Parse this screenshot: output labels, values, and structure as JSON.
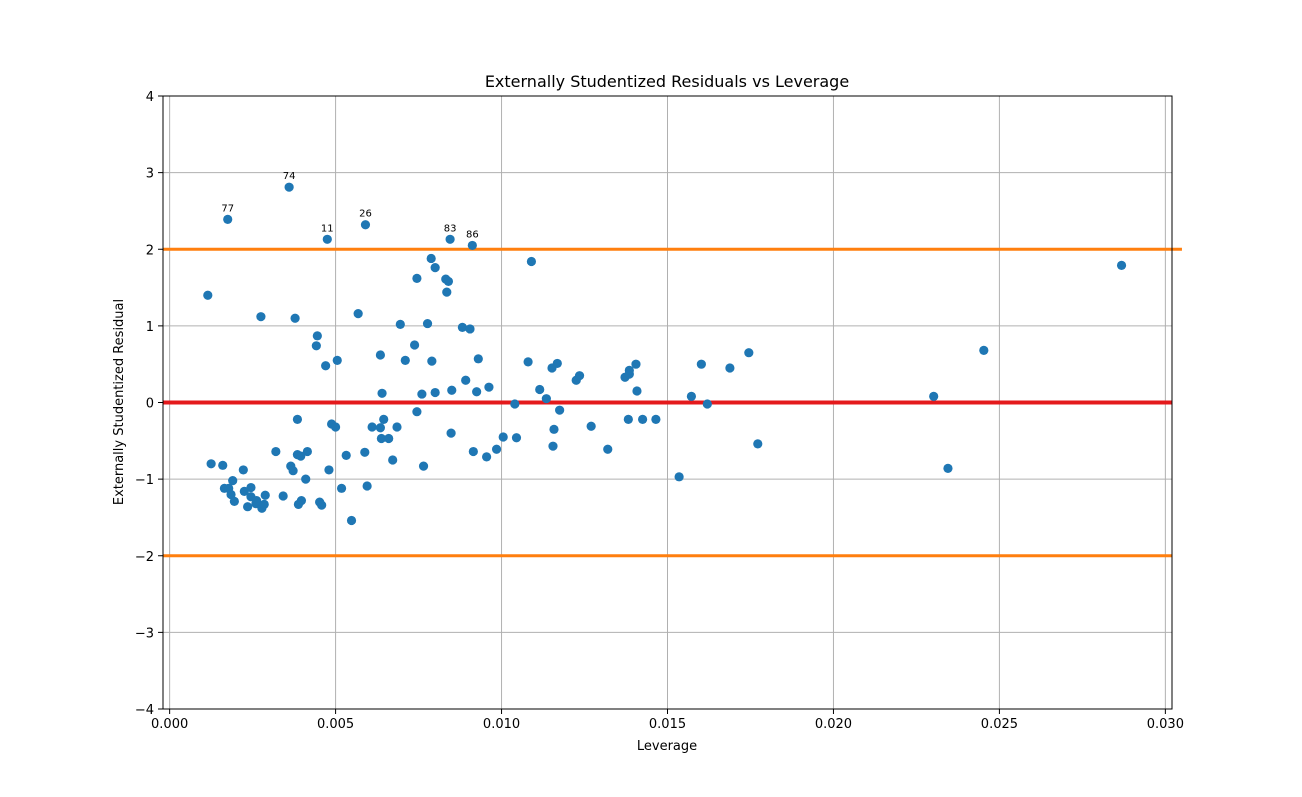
{
  "chart_data": {
    "type": "scatter",
    "title": "Externally Studentized Residuals vs Leverage",
    "xlabel": "Leverage",
    "ylabel": "Externally Studentized Residual",
    "xlim": [
      -0.0002,
      0.0302
    ],
    "ylim": [
      -4,
      4
    ],
    "grid": true,
    "x_ticks": [
      0.0,
      0.005,
      0.01,
      0.015,
      0.02,
      0.025,
      0.03
    ],
    "x_tick_labels": [
      "0.000",
      "0.005",
      "0.010",
      "0.015",
      "0.020",
      "0.025",
      "0.030"
    ],
    "y_ticks": [
      -4,
      -3,
      -2,
      -1,
      0,
      1,
      2,
      3,
      4
    ],
    "y_tick_labels": [
      "−4",
      "−3",
      "−2",
      "−1",
      "0",
      "1",
      "2",
      "3",
      "4"
    ],
    "colors": {
      "points": "#1f77b4",
      "threshold": "#ff7f0e",
      "zero_line": "#e41a1c",
      "grid": "#b0b0b0"
    },
    "reference_lines": [
      {
        "y": 2,
        "color": "#ff7f0e",
        "x_range": [
          -0.0002,
          0.0305
        ]
      },
      {
        "y": -2,
        "color": "#ff7f0e",
        "x_range": [
          -0.0002,
          0.0302
        ]
      },
      {
        "y": 0,
        "color": "#e41a1c",
        "x_range": [
          -0.0002,
          0.0302
        ]
      }
    ],
    "points": [
      [
        0.00115,
        1.4
      ],
      [
        0.00125,
        -0.8
      ],
      [
        0.0016,
        -0.82
      ],
      [
        0.00165,
        -1.12
      ],
      [
        0.00175,
        2.39
      ],
      [
        0.00178,
        -1.12
      ],
      [
        0.00185,
        -1.2
      ],
      [
        0.0019,
        -1.02
      ],
      [
        0.00195,
        -1.29
      ],
      [
        0.00222,
        -0.88
      ],
      [
        0.00225,
        -1.16
      ],
      [
        0.00235,
        -1.36
      ],
      [
        0.00245,
        -1.23
      ],
      [
        0.00245,
        -1.11
      ],
      [
        0.0026,
        -1.32
      ],
      [
        0.00262,
        -1.28
      ],
      [
        0.00275,
        1.12
      ],
      [
        0.00278,
        -1.38
      ],
      [
        0.00285,
        -1.33
      ],
      [
        0.00288,
        -1.21
      ],
      [
        0.0032,
        -0.64
      ],
      [
        0.00342,
        -1.22
      ],
      [
        0.0036,
        2.81
      ],
      [
        0.00365,
        -0.83
      ],
      [
        0.00372,
        -0.89
      ],
      [
        0.00378,
        1.1
      ],
      [
        0.00385,
        -0.68
      ],
      [
        0.00385,
        -0.22
      ],
      [
        0.00388,
        -1.33
      ],
      [
        0.00395,
        -0.7
      ],
      [
        0.00397,
        -1.28
      ],
      [
        0.0041,
        -1.0
      ],
      [
        0.00415,
        -0.64
      ],
      [
        0.00442,
        0.74
      ],
      [
        0.00445,
        0.87
      ],
      [
        0.00452,
        -1.3
      ],
      [
        0.00458,
        -1.34
      ],
      [
        0.0047,
        0.48
      ],
      [
        0.00475,
        2.13
      ],
      [
        0.0048,
        -0.88
      ],
      [
        0.00488,
        -0.28
      ],
      [
        0.005,
        -0.32
      ],
      [
        0.00505,
        0.55
      ],
      [
        0.00518,
        -1.12
      ],
      [
        0.00532,
        -0.69
      ],
      [
        0.00548,
        -1.54
      ],
      [
        0.00568,
        1.16
      ],
      [
        0.00588,
        -0.65
      ],
      [
        0.0059,
        2.32
      ],
      [
        0.00595,
        -1.09
      ],
      [
        0.0061,
        -0.32
      ],
      [
        0.00635,
        0.62
      ],
      [
        0.00635,
        -0.33
      ],
      [
        0.00638,
        -0.47
      ],
      [
        0.0064,
        0.12
      ],
      [
        0.00645,
        -0.22
      ],
      [
        0.0066,
        -0.47
      ],
      [
        0.00672,
        -0.75
      ],
      [
        0.00685,
        -0.32
      ],
      [
        0.00695,
        1.02
      ],
      [
        0.0071,
        0.55
      ],
      [
        0.00738,
        0.75
      ],
      [
        0.00745,
        1.62
      ],
      [
        0.00745,
        -0.12
      ],
      [
        0.0076,
        0.11
      ],
      [
        0.00765,
        -0.83
      ],
      [
        0.00777,
        1.03
      ],
      [
        0.00788,
        1.88
      ],
      [
        0.0079,
        0.54
      ],
      [
        0.008,
        1.76
      ],
      [
        0.008,
        0.13
      ],
      [
        0.00832,
        1.61
      ],
      [
        0.00835,
        1.44
      ],
      [
        0.0084,
        1.58
      ],
      [
        0.00845,
        2.13
      ],
      [
        0.00848,
        -0.4
      ],
      [
        0.0085,
        0.16
      ],
      [
        0.00882,
        0.98
      ],
      [
        0.00892,
        0.29
      ],
      [
        0.00905,
        0.96
      ],
      [
        0.00912,
        2.05
      ],
      [
        0.00915,
        -0.64
      ],
      [
        0.00925,
        0.14
      ],
      [
        0.0093,
        0.57
      ],
      [
        0.00955,
        -0.71
      ],
      [
        0.00962,
        0.2
      ],
      [
        0.00985,
        -0.61
      ],
      [
        0.01005,
        -0.45
      ],
      [
        0.0104,
        -0.02
      ],
      [
        0.01045,
        -0.46
      ],
      [
        0.0108,
        0.53
      ],
      [
        0.0109,
        1.84
      ],
      [
        0.01115,
        0.17
      ],
      [
        0.01135,
        0.05
      ],
      [
        0.01152,
        0.45
      ],
      [
        0.01155,
        -0.57
      ],
      [
        0.01158,
        -0.35
      ],
      [
        0.01168,
        0.51
      ],
      [
        0.01175,
        -0.1
      ],
      [
        0.01225,
        0.29
      ],
      [
        0.01235,
        0.35
      ],
      [
        0.0127,
        -0.31
      ],
      [
        0.0132,
        -0.61
      ],
      [
        0.01372,
        0.33
      ],
      [
        0.01382,
        -0.22
      ],
      [
        0.01385,
        0.37
      ],
      [
        0.01385,
        0.42
      ],
      [
        0.01405,
        0.5
      ],
      [
        0.01408,
        0.15
      ],
      [
        0.01425,
        -0.22
      ],
      [
        0.01465,
        -0.22
      ],
      [
        0.01535,
        -0.97
      ],
      [
        0.01572,
        0.08
      ],
      [
        0.01602,
        0.5
      ],
      [
        0.0162,
        -0.02
      ],
      [
        0.01688,
        0.45
      ],
      [
        0.01745,
        0.65
      ],
      [
        0.01772,
        -0.54
      ],
      [
        0.02302,
        0.08
      ],
      [
        0.02345,
        -0.86
      ],
      [
        0.02453,
        0.68
      ],
      [
        0.02868,
        1.79
      ]
    ],
    "annotations": [
      {
        "text": "77",
        "x": 0.00175,
        "y": 2.39
      },
      {
        "text": "74",
        "x": 0.0036,
        "y": 2.81
      },
      {
        "text": "11",
        "x": 0.00475,
        "y": 2.13
      },
      {
        "text": "26",
        "x": 0.0059,
        "y": 2.32
      },
      {
        "text": "83",
        "x": 0.00845,
        "y": 2.13
      },
      {
        "text": "86",
        "x": 0.00912,
        "y": 2.05
      }
    ]
  }
}
